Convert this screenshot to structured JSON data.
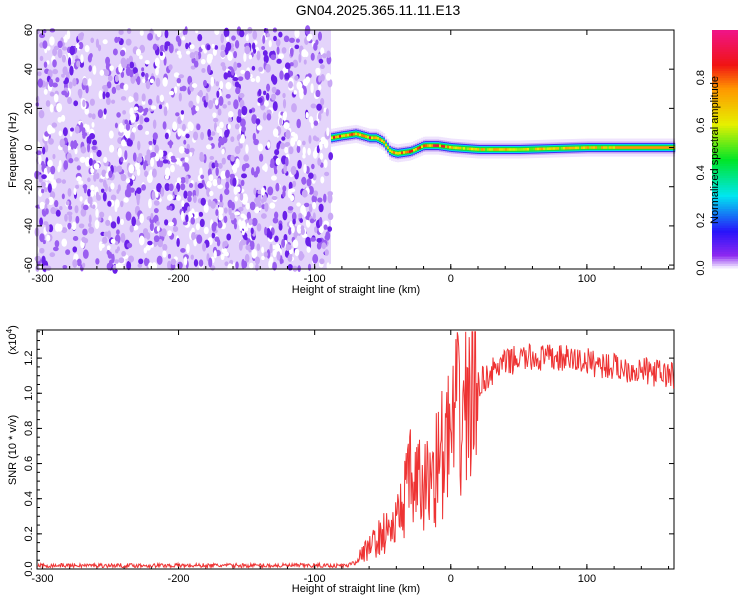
{
  "title": "GN04.2025.365.11.11.E13",
  "chart_data": [
    {
      "type": "heatmap",
      "title": "GN04.2025.365.11.11.E13",
      "xlabel": "Height of straight line (km)",
      "ylabel": "Frequency (Hz)",
      "xlim": [
        -304,
        164
      ],
      "ylim": [
        -62,
        60
      ],
      "xticks": [
        "-300",
        "-200",
        "-100",
        "0",
        "100"
      ],
      "xtick_values": [
        -300,
        -200,
        -100,
        0,
        100
      ],
      "yticks": [
        "-60",
        "-40",
        "-20",
        "0",
        "20",
        "40",
        "60"
      ],
      "ytick_values": [
        -60,
        -40,
        -20,
        0,
        20,
        40,
        60
      ],
      "noise_region_x": [
        -304,
        -88
      ],
      "ridge": {
        "x": [
          -88,
          -80,
          -70,
          -60,
          -55,
          -50,
          -45,
          -40,
          -30,
          -20,
          -10,
          0,
          20,
          50,
          100,
          130,
          164
        ],
        "freq": [
          5,
          6,
          7,
          5,
          5,
          3,
          -2,
          -3,
          -2,
          1,
          1,
          0,
          -1,
          -1,
          0,
          0,
          0
        ]
      },
      "colorbar": {
        "label": "Normalized spectral amplitude",
        "ticks": [
          "0.0",
          "0.2",
          "0.4",
          "0.6",
          "0.8"
        ],
        "tick_values": [
          0,
          0.2,
          0.4,
          0.6,
          0.8
        ],
        "range": [
          0,
          1
        ]
      }
    },
    {
      "type": "line",
      "xlabel": "Height of straight line (km)",
      "ylabel": "SNR (10 * v/v)",
      "multiplier": "(x10",
      "multiplier_exp": "4",
      "xlim": [
        -304,
        164
      ],
      "ylim": [
        0,
        1.36
      ],
      "xticks": [
        "-300",
        "-200",
        "-100",
        "0",
        "100"
      ],
      "xtick_values": [
        -300,
        -200,
        -100,
        0,
        100
      ],
      "yticks": [
        "0.0",
        "0.2",
        "0.4",
        "0.6",
        "0.8",
        "1.0",
        "1.2"
      ],
      "ytick_values": [
        0,
        0.2,
        0.4,
        0.6,
        0.8,
        1.0,
        1.2
      ],
      "series": [
        {
          "name": "SNR",
          "color": "#ee3333",
          "x": [
            -304,
            -200,
            -100,
            -75,
            -70,
            -60,
            -50,
            -40,
            -35,
            -30,
            -20,
            -10,
            0,
            10,
            20,
            30,
            40,
            50,
            60,
            80,
            100,
            120,
            140,
            164
          ],
          "y": [
            0.02,
            0.02,
            0.02,
            0.02,
            0.05,
            0.12,
            0.2,
            0.25,
            0.4,
            0.5,
            0.45,
            0.6,
            0.75,
            0.95,
            1.05,
            1.12,
            1.17,
            1.2,
            1.2,
            1.2,
            1.18,
            1.15,
            1.13,
            1.1
          ]
        }
      ]
    }
  ]
}
